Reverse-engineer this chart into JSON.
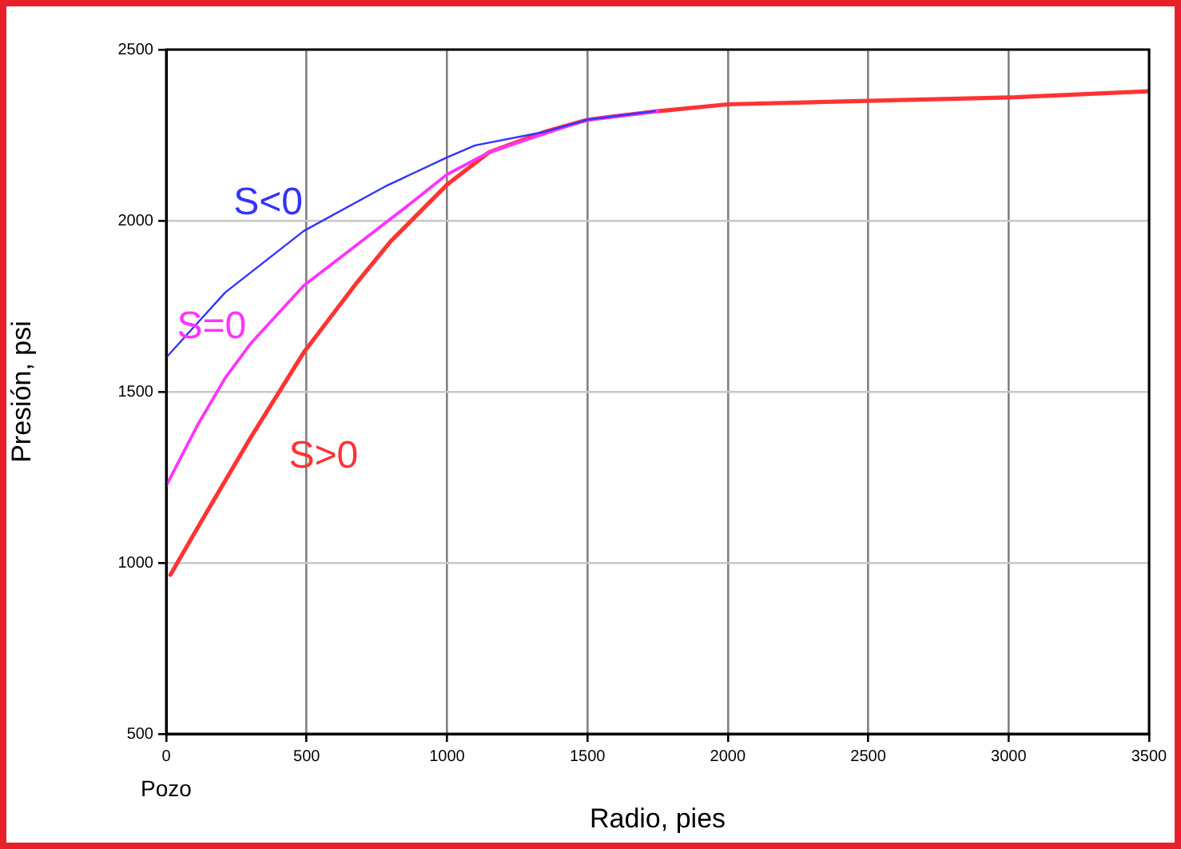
{
  "chart_data": {
    "type": "line",
    "xlabel": "Radio, pies",
    "ylabel": "Presión, psi",
    "xlim": [
      0,
      3500
    ],
    "xticks": [
      0,
      500,
      1000,
      1500,
      2000,
      2500,
      3000,
      3500
    ],
    "ylim": [
      500,
      2500
    ],
    "yticks": [
      500,
      1000,
      1500,
      2000,
      2500
    ],
    "grid": true,
    "legend": false,
    "marker": "none",
    "line_style": "solid",
    "annotations": [
      "Pozo"
    ],
    "series": [
      {
        "name": "S<0",
        "color": "#3333ff",
        "x": [
          0,
          210,
          490,
          780,
          1000,
          1100,
          1350,
          1500,
          1740
        ],
        "values": [
          1600,
          1790,
          1970,
          2100,
          2185,
          2220,
          2260,
          2295,
          2320
        ]
      },
      {
        "name": "S=0",
        "color": "#ff33ff",
        "x": [
          0,
          110,
          210,
          300,
          490,
          680,
          870,
          1000,
          1150,
          1350,
          1500,
          1750
        ],
        "values": [
          1225,
          1400,
          1540,
          1640,
          1810,
          1930,
          2050,
          2135,
          2200,
          2255,
          2295,
          2320
        ]
      },
      {
        "name": "S>0",
        "color": "#ff3333",
        "x": [
          15,
          110,
          300,
          490,
          680,
          800,
          1000,
          1150,
          1350,
          1500,
          1750,
          2000,
          2500,
          3000,
          3500
        ],
        "values": [
          965,
          1100,
          1365,
          1615,
          1820,
          1940,
          2105,
          2200,
          2260,
          2295,
          2320,
          2340,
          2350,
          2360,
          2378
        ]
      }
    ]
  }
}
